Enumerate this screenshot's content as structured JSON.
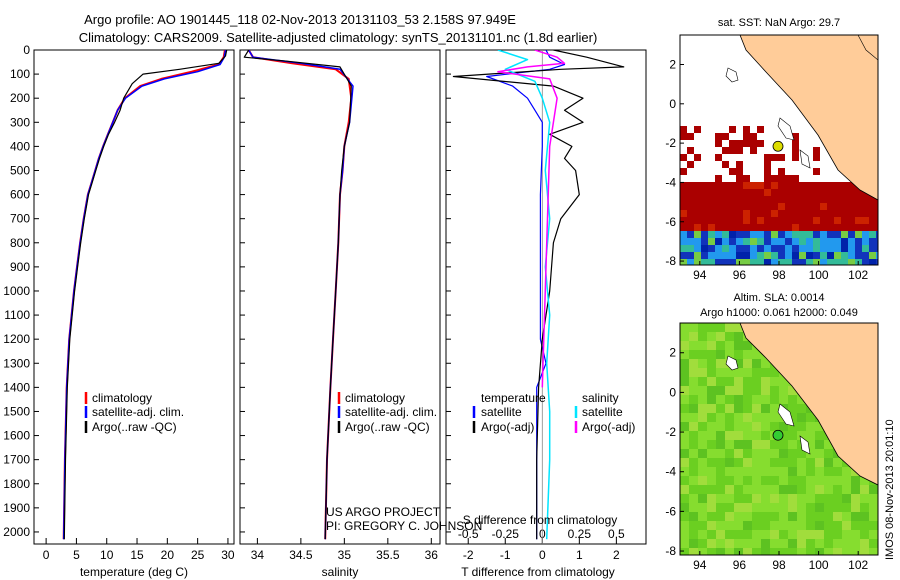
{
  "header": {
    "line1": "Argo profile: AO 1901445_118 02-Nov-2013 20131103_53 2.158S 97.949E",
    "line2": "Climatology: CARS2009. Satellite-adjusted climatology: synTS_20131101.nc (1.8d earlier)"
  },
  "colors": {
    "climatology": "#ff0000",
    "satellite": "#0000ff",
    "argo": "#000000",
    "salinity_satellite": "#00e5ff",
    "salinity_argo": "#ff00ff",
    "land": "#ffcc99",
    "sst_hot": "#aa0000",
    "sla_green": "#66dd22"
  },
  "legend_ts": {
    "climatology": "climatology",
    "satellite": "satellite-adj. clim.",
    "argo": "Argo(..raw -QC)"
  },
  "legend_diff": {
    "temperature": "temperature",
    "salinity": "salinity",
    "satellite": "satellite",
    "argo": "Argo(-adj)"
  },
  "project": {
    "line1": "US ARGO PROJECT",
    "line2": "PI: GREGORY C. JOHNSON"
  },
  "map_sst": {
    "title": "sat. SST: NaN Argo: 29.7"
  },
  "map_sla": {
    "title1": "Altim. SLA: 0.0014",
    "title2": "Argo h1000: 0.061 h2000: 0.049"
  },
  "credit": "IMOS 08-Nov-2013 20:01:10",
  "chart_data": [
    {
      "type": "line",
      "name": "temperature",
      "xlabel": "temperature (deg C)",
      "xlim": [
        -2,
        31
      ],
      "xticks": [
        0,
        5,
        10,
        15,
        20,
        25,
        30
      ],
      "ylim": [
        2050,
        0
      ],
      "yticks": [
        0,
        100,
        200,
        300,
        400,
        500,
        600,
        700,
        800,
        900,
        1000,
        1100,
        1200,
        1300,
        1400,
        1500,
        1600,
        1700,
        1800,
        1900,
        2000
      ],
      "series": [
        {
          "name": "climatology",
          "color": "#ff0000",
          "width": 2,
          "x": [
            29.5,
            29.3,
            28.5,
            24,
            19,
            15.5,
            13,
            11.8,
            11,
            10.2,
            9.4,
            8.7,
            8.1,
            7.5,
            6.9,
            6.2,
            5.6,
            5.1,
            4.6,
            4.2,
            3.8,
            3.4,
            3.1,
            2.9
          ],
          "y": [
            0,
            30,
            60,
            90,
            120,
            150,
            200,
            250,
            300,
            350,
            400,
            450,
            500,
            550,
            600,
            700,
            800,
            900,
            1000,
            1100,
            1200,
            1400,
            1700,
            2030
          ]
        },
        {
          "name": "satellite-adj. clim.",
          "color": "#0000ff",
          "width": 1.5,
          "x": [
            29.6,
            29.4,
            28.7,
            25,
            19.5,
            15.8,
            13.1,
            11.8,
            11,
            10.2,
            9.4,
            8.7,
            8.1,
            7.5,
            6.9,
            6.2,
            5.6,
            5.1,
            4.6,
            4.2,
            3.8,
            3.4,
            3.1,
            2.9
          ],
          "y": [
            0,
            30,
            60,
            90,
            120,
            150,
            200,
            250,
            300,
            350,
            400,
            450,
            500,
            550,
            600,
            700,
            800,
            900,
            1000,
            1100,
            1200,
            1400,
            1700,
            2030
          ]
        },
        {
          "name": "Argo(..raw -QC)",
          "color": "#000000",
          "width": 1.2,
          "x": [
            29.8,
            29.6,
            28.5,
            22,
            16,
            14.2,
            12.8,
            12.2,
            11.3,
            10.3,
            9.5,
            8.8,
            8.2,
            7.6,
            7,
            6.3,
            5.7,
            5.2,
            4.7,
            4.3,
            3.9,
            3.5,
            3.2,
            3.0
          ],
          "y": [
            0,
            25,
            55,
            80,
            100,
            140,
            200,
            250,
            300,
            350,
            400,
            450,
            500,
            550,
            600,
            700,
            800,
            900,
            1000,
            1100,
            1200,
            1400,
            1700,
            2030
          ]
        }
      ]
    },
    {
      "type": "line",
      "name": "salinity",
      "xlabel": "salinity",
      "xlim": [
        33.8,
        36.1
      ],
      "xticks": [
        34,
        34.5,
        35,
        35.5,
        36
      ],
      "ylim": [
        2050,
        0
      ],
      "series": [
        {
          "name": "climatology",
          "color": "#ff0000",
          "width": 2,
          "x": [
            33.9,
            33.95,
            34.4,
            34.9,
            35.05,
            35.08,
            35.05,
            35.0,
            34.98,
            34.95,
            34.93,
            34.9,
            34.87,
            34.84,
            34.8,
            34.78
          ],
          "y": [
            0,
            30,
            55,
            80,
            120,
            200,
            300,
            400,
            500,
            600,
            800,
            1000,
            1200,
            1400,
            1700,
            2030
          ]
        },
        {
          "name": "satellite-adj. clim.",
          "color": "#0000ff",
          "width": 1.5,
          "x": [
            33.9,
            33.95,
            34.5,
            34.95,
            35.1,
            35.06,
            35.0,
            34.98,
            34.95,
            34.93,
            34.9,
            34.87,
            34.84,
            34.8,
            34.78
          ],
          "y": [
            0,
            30,
            55,
            80,
            150,
            300,
            400,
            500,
            600,
            800,
            1000,
            1200,
            1400,
            1700,
            2030
          ]
        },
        {
          "name": "Argo(..raw -QC)",
          "color": "#000000",
          "width": 1.2,
          "x": [
            33.9,
            33.85,
            34.3,
            34.95,
            35.08,
            35.06,
            35.0,
            34.97,
            34.95,
            34.93,
            34.9,
            34.87,
            34.84,
            34.8,
            34.78
          ],
          "y": [
            0,
            30,
            45,
            70,
            150,
            300,
            400,
            500,
            600,
            800,
            1000,
            1200,
            1400,
            1700,
            2030
          ]
        }
      ]
    },
    {
      "type": "line",
      "name": "difference",
      "xlabel": "T difference from climatology",
      "xlabel2": "S difference from climatology",
      "xlim": [
        -2.6,
        2.8
      ],
      "xticks": [
        -2,
        -1,
        0,
        1,
        2
      ],
      "xticks_s": [
        -0.5,
        -0.25,
        0,
        0.25,
        0.5
      ],
      "ylim": [
        2050,
        0
      ],
      "series": [
        {
          "name": "T satellite",
          "color": "#0000ff",
          "width": 1.2,
          "x": [
            0.1,
            0.2,
            0.6,
            0.2,
            -1.5,
            -0.8,
            -0.4,
            -0.2,
            0,
            0,
            -0.05,
            -0.05,
            -0.05,
            -0.05,
            0.1,
            -0.15,
            -0.15,
            -0.15
          ],
          "y": [
            0,
            30,
            60,
            80,
            110,
            150,
            200,
            250,
            300,
            400,
            600,
            800,
            1000,
            1200,
            1300,
            1400,
            1700,
            2030
          ]
        },
        {
          "name": "T Argo(-adj)",
          "color": "#000000",
          "width": 1.2,
          "x": [
            0.3,
            1.2,
            2.2,
            0.5,
            -2.4,
            0.3,
            1.1,
            0.6,
            1.1,
            0.2,
            0.8,
            0.6,
            0.9,
            1.0,
            0.5,
            0.3,
            0.2,
            0.0,
            -0.1,
            -0.15,
            -0.15
          ],
          "y": [
            0,
            30,
            70,
            80,
            110,
            150,
            200,
            250,
            300,
            350,
            400,
            450,
            500,
            600,
            700,
            800,
            1000,
            1200,
            1400,
            1700,
            2030
          ]
        },
        {
          "name": "S satellite",
          "color": "#00e5ff",
          "width": 1.5,
          "x": [
            -0.3,
            -0.1,
            -0.25,
            -0.05,
            0,
            0.05,
            0.02,
            0.05,
            0.02,
            0.05,
            0.03,
            0.05,
            0.05,
            0.03
          ],
          "y": [
            0,
            40,
            80,
            130,
            200,
            300,
            500,
            700,
            900,
            1100,
            1300,
            1500,
            1700,
            2030
          ]
        },
        {
          "name": "S Argo(-adj)",
          "color": "#ff00ff",
          "width": 1.5,
          "x": [
            -0.05,
            0.1,
            0.15,
            -0.1,
            -0.3,
            0.05,
            0.1,
            0.05,
            0.0
          ],
          "y": [
            0,
            30,
            55,
            70,
            90,
            120,
            200,
            400,
            1400
          ]
        }
      ]
    },
    {
      "type": "heatmap",
      "name": "sst-map",
      "xlim": [
        93,
        103
      ],
      "xticks": [
        94,
        96,
        98,
        100,
        102
      ],
      "ylim": [
        -8.2,
        3.5
      ],
      "yticks": [
        2,
        0,
        -2,
        -4,
        -6,
        -8
      ],
      "argo_position": [
        97.95,
        -2.16
      ]
    },
    {
      "type": "heatmap",
      "name": "sla-map",
      "xlim": [
        93,
        103
      ],
      "xticks": [
        94,
        96,
        98,
        100,
        102
      ],
      "ylim": [
        -8.2,
        3.5
      ],
      "yticks": [
        2,
        0,
        -2,
        -4,
        -6,
        -8
      ],
      "argo_position": [
        97.95,
        -2.16
      ]
    }
  ]
}
